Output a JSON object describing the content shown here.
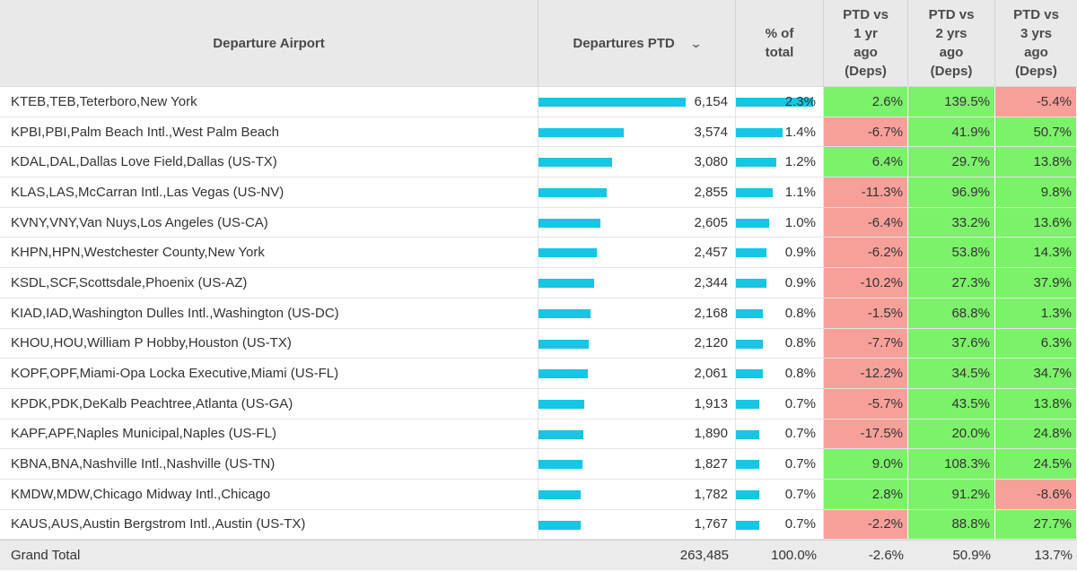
{
  "headers": {
    "airport": "Departure Airport",
    "departures": "Departures PTD",
    "pct_total": [
      "% of",
      "total"
    ],
    "ptd_1yr": [
      "PTD vs",
      "1 yr",
      "ago",
      "(Deps)"
    ],
    "ptd_2yr": [
      "PTD vs",
      "2 yrs",
      "ago",
      "(Deps)"
    ],
    "ptd_3yr": [
      "PTD vs",
      "3 yrs",
      "ago",
      "(Deps)"
    ],
    "sort_icon": "chevron-down-icon"
  },
  "colors": {
    "bar": "#16c6e4",
    "positive": "#7cf26a",
    "negative": "#f7a09a",
    "header_bg": "#e9e9e9"
  },
  "rows": [
    {
      "airport": "KTEB,TEB,Teterboro,New York",
      "departures": "6,154",
      "dep_value": 6154,
      "pct": "2.3%",
      "pct_value": 2.3,
      "y1": "2.6%",
      "y2": "139.5%",
      "y3": "-5.4%"
    },
    {
      "airport": "KPBI,PBI,Palm Beach Intl.,West Palm Beach",
      "departures": "3,574",
      "dep_value": 3574,
      "pct": "1.4%",
      "pct_value": 1.4,
      "y1": "-6.7%",
      "y2": "41.9%",
      "y3": "50.7%"
    },
    {
      "airport": "KDAL,DAL,Dallas Love Field,Dallas (US-TX)",
      "departures": "3,080",
      "dep_value": 3080,
      "pct": "1.2%",
      "pct_value": 1.2,
      "y1": "6.4%",
      "y2": "29.7%",
      "y3": "13.8%"
    },
    {
      "airport": "KLAS,LAS,McCarran Intl.,Las Vegas (US-NV)",
      "departures": "2,855",
      "dep_value": 2855,
      "pct": "1.1%",
      "pct_value": 1.1,
      "y1": "-11.3%",
      "y2": "96.9%",
      "y3": "9.8%"
    },
    {
      "airport": "KVNY,VNY,Van Nuys,Los Angeles (US-CA)",
      "departures": "2,605",
      "dep_value": 2605,
      "pct": "1.0%",
      "pct_value": 1.0,
      "y1": "-6.4%",
      "y2": "33.2%",
      "y3": "13.6%"
    },
    {
      "airport": "KHPN,HPN,Westchester County,New York",
      "departures": "2,457",
      "dep_value": 2457,
      "pct": "0.9%",
      "pct_value": 0.9,
      "y1": "-6.2%",
      "y2": "53.8%",
      "y3": "14.3%"
    },
    {
      "airport": "KSDL,SCF,Scottsdale,Phoenix (US-AZ)",
      "departures": "2,344",
      "dep_value": 2344,
      "pct": "0.9%",
      "pct_value": 0.9,
      "y1": "-10.2%",
      "y2": "27.3%",
      "y3": "37.9%"
    },
    {
      "airport": "KIAD,IAD,Washington Dulles Intl.,Washington (US-DC)",
      "departures": "2,168",
      "dep_value": 2168,
      "pct": "0.8%",
      "pct_value": 0.8,
      "y1": "-1.5%",
      "y2": "68.8%",
      "y3": "1.3%"
    },
    {
      "airport": "KHOU,HOU,William P Hobby,Houston (US-TX)",
      "departures": "2,120",
      "dep_value": 2120,
      "pct": "0.8%",
      "pct_value": 0.8,
      "y1": "-7.7%",
      "y2": "37.6%",
      "y3": "6.3%"
    },
    {
      "airport": "KOPF,OPF,Miami-Opa Locka Executive,Miami (US-FL)",
      "departures": "2,061",
      "dep_value": 2061,
      "pct": "0.8%",
      "pct_value": 0.8,
      "y1": "-12.2%",
      "y2": "34.5%",
      "y3": "34.7%"
    },
    {
      "airport": "KPDK,PDK,DeKalb Peachtree,Atlanta (US-GA)",
      "departures": "1,913",
      "dep_value": 1913,
      "pct": "0.7%",
      "pct_value": 0.7,
      "y1": "-5.7%",
      "y2": "43.5%",
      "y3": "13.8%"
    },
    {
      "airport": "KAPF,APF,Naples Municipal,Naples (US-FL)",
      "departures": "1,890",
      "dep_value": 1890,
      "pct": "0.7%",
      "pct_value": 0.7,
      "y1": "-17.5%",
      "y2": "20.0%",
      "y3": "24.8%"
    },
    {
      "airport": "KBNA,BNA,Nashville Intl.,Nashville (US-TN)",
      "departures": "1,827",
      "dep_value": 1827,
      "pct": "0.7%",
      "pct_value": 0.7,
      "y1": "9.0%",
      "y2": "108.3%",
      "y3": "24.5%"
    },
    {
      "airport": "KMDW,MDW,Chicago Midway Intl.,Chicago",
      "departures": "1,782",
      "dep_value": 1782,
      "pct": "0.7%",
      "pct_value": 0.7,
      "y1": "2.8%",
      "y2": "91.2%",
      "y3": "-8.6%"
    },
    {
      "airport": "KAUS,AUS,Austin Bergstrom Intl.,Austin (US-TX)",
      "departures": "1,767",
      "dep_value": 1767,
      "pct": "0.7%",
      "pct_value": 0.7,
      "y1": "-2.2%",
      "y2": "88.8%",
      "y3": "27.7%"
    }
  ],
  "grand_total": {
    "label": "Grand Total",
    "departures": "263,485",
    "pct": "100.0%",
    "y1": "-2.6%",
    "y2": "50.9%",
    "y3": "13.7%"
  }
}
